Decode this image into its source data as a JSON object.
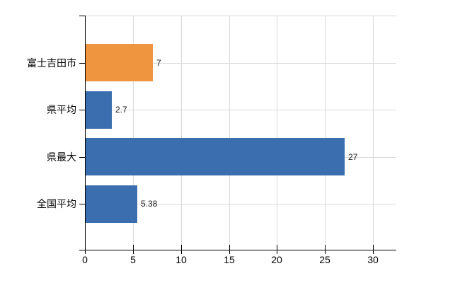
{
  "chart_data": {
    "type": "bar",
    "orientation": "horizontal",
    "title": "",
    "xlabel": "",
    "ylabel": "",
    "categories": [
      "富士吉田市",
      "県平均",
      "県最大",
      "全国平均"
    ],
    "values": [
      7,
      2.7,
      27,
      5.38
    ],
    "value_labels": [
      "7",
      "2.7",
      "27",
      "5.38"
    ],
    "bar_colors": [
      "#f0953f",
      "#3b6eae",
      "#3b6eae",
      "#3b6eae"
    ],
    "x_tick_labels": [
      "0",
      "5",
      "10",
      "15",
      "20",
      "25",
      "30"
    ],
    "x_tick_values": [
      0,
      5,
      10,
      15,
      20,
      25,
      30
    ],
    "xlim": [
      0,
      32.4
    ],
    "grid": true,
    "legend": false
  },
  "style": {
    "background": "#ffffff",
    "axis_color": "#000000",
    "gridline_color": "#d9d9d9",
    "text_color": "#000000",
    "accent_orange": "#f0953f",
    "accent_blue": "#3b6eae"
  }
}
